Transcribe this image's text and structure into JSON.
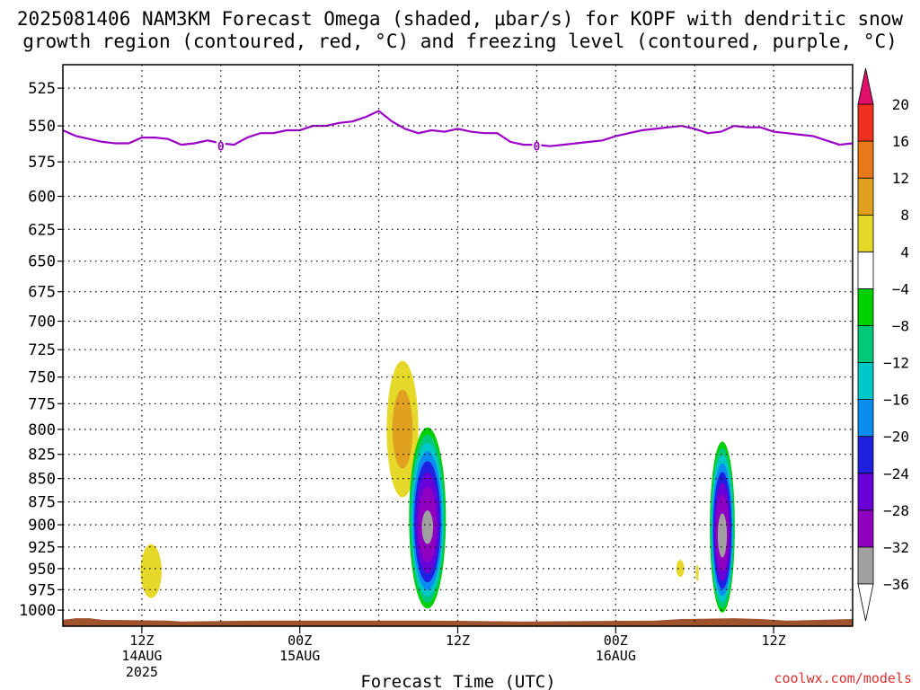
{
  "header": {
    "title_line1": "2025081406 NAM3KM Forecast Omega (shaded, μbar/s) for KOPF with dendritic snow",
    "title_line2": "growth region (contoured, red, °C) and freezing level (contoured, purple, °C)"
  },
  "footer": {
    "credit": "coolwx.com/models"
  },
  "chart_data": {
    "type": "heatmap",
    "title": "2025081406 NAM3KM Forecast Omega (shaded, μbar/s) for KOPF with dendritic snow growth region (contoured, red, °C) and freezing level (contoured, purple, °C)",
    "xlabel": "Forecast Time (UTC)",
    "ylabel": "",
    "x_axis": {
      "unit": "hours since 2025-08-14 06Z",
      "range": [
        0,
        60
      ],
      "ticks": [
        {
          "x": 6,
          "line1": "12Z",
          "line2": "14AUG",
          "line3": "2025"
        },
        {
          "x": 18,
          "line1": "00Z",
          "line2": "15AUG",
          "line3": ""
        },
        {
          "x": 30,
          "line1": "12Z",
          "line2": "",
          "line3": ""
        },
        {
          "x": 42,
          "line1": "00Z",
          "line2": "16AUG",
          "line3": ""
        },
        {
          "x": 54,
          "line1": "12Z",
          "line2": "",
          "line3": ""
        }
      ],
      "vertical_grid_x": [
        6,
        12,
        18,
        24,
        30,
        36,
        42,
        48,
        54
      ]
    },
    "y_axis": {
      "unit": "hPa",
      "scale": "log",
      "range": [
        1020,
        510
      ],
      "ticks": [
        525,
        550,
        575,
        600,
        625,
        650,
        675,
        700,
        725,
        750,
        775,
        800,
        825,
        850,
        875,
        900,
        925,
        950,
        975,
        1000
      ]
    },
    "grid": true,
    "colorbar": {
      "unit": "μbar/s",
      "levels": [
        -36,
        -32,
        -28,
        -24,
        -20,
        -16,
        -12,
        -8,
        -4,
        4,
        8,
        12,
        16,
        20
      ],
      "labels": [
        "20",
        "16",
        "12",
        "8",
        "4",
        "−4",
        "−8",
        "−12",
        "−16",
        "−20",
        "−24",
        "−28",
        "−32",
        "−36"
      ],
      "colors": [
        "#ffffff",
        "#a0a0a0",
        "#9000c0",
        "#6a00d8",
        "#2020e0",
        "#0a8cf0",
        "#00c8c8",
        "#00c878",
        "#00d000",
        "#ffffff",
        "#e6d828",
        "#e0a020",
        "#e87818",
        "#f03020",
        "#e0106a"
      ]
    },
    "freezing_level": {
      "label": "0",
      "color": "#9a00c8",
      "points": [
        [
          0,
          553
        ],
        [
          1,
          557
        ],
        [
          2,
          559
        ],
        [
          3,
          561
        ],
        [
          4,
          562
        ],
        [
          5,
          562
        ],
        [
          6,
          558
        ],
        [
          7,
          558
        ],
        [
          8,
          559
        ],
        [
          9,
          563
        ],
        [
          10,
          562
        ],
        [
          11,
          560
        ],
        [
          12,
          562
        ],
        [
          13,
          563
        ],
        [
          14,
          558
        ],
        [
          15,
          555
        ],
        [
          16,
          555
        ],
        [
          17,
          553
        ],
        [
          18,
          553
        ],
        [
          19,
          550
        ],
        [
          20,
          550
        ],
        [
          21,
          548
        ],
        [
          22,
          547
        ],
        [
          23,
          544
        ],
        [
          24,
          540
        ],
        [
          25,
          547
        ],
        [
          26,
          552
        ],
        [
          27,
          555
        ],
        [
          28,
          553
        ],
        [
          29,
          554
        ],
        [
          30,
          552
        ],
        [
          31,
          554
        ],
        [
          32,
          555
        ],
        [
          33,
          555
        ],
        [
          34,
          561
        ],
        [
          35,
          563
        ],
        [
          36,
          563
        ],
        [
          37,
          564
        ],
        [
          38,
          563
        ],
        [
          39,
          562
        ],
        [
          40,
          561
        ],
        [
          41,
          560
        ],
        [
          42,
          557
        ],
        [
          43,
          555
        ],
        [
          44,
          553
        ],
        [
          45,
          552
        ],
        [
          46,
          551
        ],
        [
          47,
          550
        ],
        [
          48,
          552
        ],
        [
          49,
          555
        ],
        [
          50,
          554
        ],
        [
          51,
          550
        ],
        [
          52,
          551
        ],
        [
          53,
          551
        ],
        [
          54,
          554
        ],
        [
          55,
          555
        ],
        [
          56,
          556
        ],
        [
          57,
          557
        ],
        [
          58,
          560
        ],
        [
          59,
          563
        ],
        [
          60,
          562
        ]
      ],
      "labels_at": [
        [
          12,
          564
        ],
        [
          36,
          564
        ]
      ]
    },
    "omega_features": [
      {
        "kind": "ascent",
        "x": 6.7,
        "center_p": 942,
        "top_p": 922,
        "bottom_p": 985,
        "half_width_h": 0.8,
        "peak": 6
      },
      {
        "kind": "ascent",
        "x": 25.8,
        "center_p": 800,
        "top_p": 735,
        "bottom_p": 870,
        "half_width_h": 1.2,
        "peak": 10
      },
      {
        "kind": "descent",
        "x": 27.7,
        "center_p": 905,
        "top_p": 798,
        "bottom_p": 998,
        "half_width_h": 1.4,
        "peak": -33
      },
      {
        "kind": "ascent",
        "x": 46.9,
        "center_p": 951,
        "top_p": 940,
        "bottom_p": 960,
        "half_width_h": 0.3,
        "peak": 5
      },
      {
        "kind": "ascent",
        "x": 48.2,
        "center_p": 955,
        "top_p": 945,
        "bottom_p": 965,
        "half_width_h": 0.1,
        "peak": 5
      },
      {
        "kind": "descent",
        "x": 50.1,
        "center_p": 915,
        "top_p": 812,
        "bottom_p": 1003,
        "half_width_h": 0.95,
        "peak": -34
      }
    ],
    "terrain": {
      "color": "#a0522d",
      "surface_p": [
        [
          0,
          1012
        ],
        [
          1,
          1010
        ],
        [
          2,
          1010
        ],
        [
          3,
          1012
        ],
        [
          8,
          1013
        ],
        [
          9,
          1014
        ],
        [
          15,
          1013
        ],
        [
          28,
          1013
        ],
        [
          35,
          1014
        ],
        [
          45,
          1013
        ],
        [
          47,
          1011
        ],
        [
          51,
          1010
        ],
        [
          53,
          1011
        ],
        [
          55,
          1013
        ],
        [
          60,
          1011
        ]
      ]
    }
  }
}
